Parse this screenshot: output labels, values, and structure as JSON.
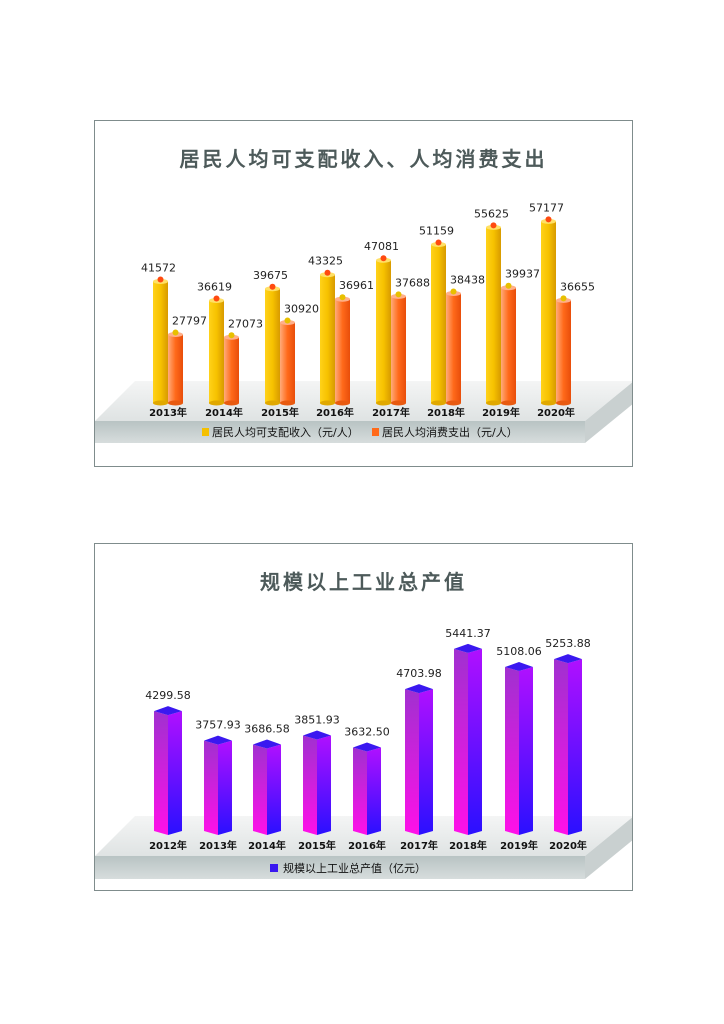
{
  "chart_data": [
    {
      "type": "bar",
      "title": "居民人均可支配收入、人均消费支出",
      "categories": [
        "2013年",
        "2014年",
        "2015年",
        "2016年",
        "2017年",
        "2018年",
        "2019年",
        "2020年"
      ],
      "series": [
        {
          "name": "居民人均可支配收入（元/人）",
          "values": [
            41572,
            36619,
            39675,
            43325,
            47081,
            51159,
            55625,
            57177
          ],
          "color": "#f5c000"
        },
        {
          "name": "居民人均消费支出（元/人）",
          "values": [
            27797,
            27073,
            30920,
            36961,
            37688,
            38438,
            39937,
            36655
          ],
          "color": "#ff6a1a"
        }
      ],
      "xlabel": "",
      "ylabel": "",
      "legend_position": "bottom",
      "grid": false
    },
    {
      "type": "bar",
      "title": "规模以上工业总产值",
      "categories": [
        "2012年",
        "2013年",
        "2014年",
        "2015年",
        "2016年",
        "2017年",
        "2018年",
        "2019年",
        "2020年"
      ],
      "series": [
        {
          "name": "规模以上工业总产值（亿元）",
          "values": [
            4299.58,
            3757.93,
            3686.58,
            3851.93,
            3632.5,
            4703.98,
            5441.37,
            5108.06,
            5253.88
          ],
          "color": "#8a1cff"
        }
      ],
      "value_labels": [
        "4299.58",
        "3757.93",
        "3686.58",
        "3851.93",
        "3632.50",
        "4703.98",
        "5441.37",
        "5108.06",
        "5253.88"
      ],
      "xlabel": "",
      "ylabel": "",
      "legend_position": "bottom",
      "grid": false
    }
  ],
  "chart1": {
    "title": "居民人均可支配收入、人均消费支出",
    "legend": [
      "居民人均可支配收入（元/人）",
      "居民人均消费支出（元/人）"
    ]
  },
  "chart2": {
    "title": "规模以上工业总产值",
    "legend": [
      "规模以上工业总产值（亿元）"
    ]
  }
}
